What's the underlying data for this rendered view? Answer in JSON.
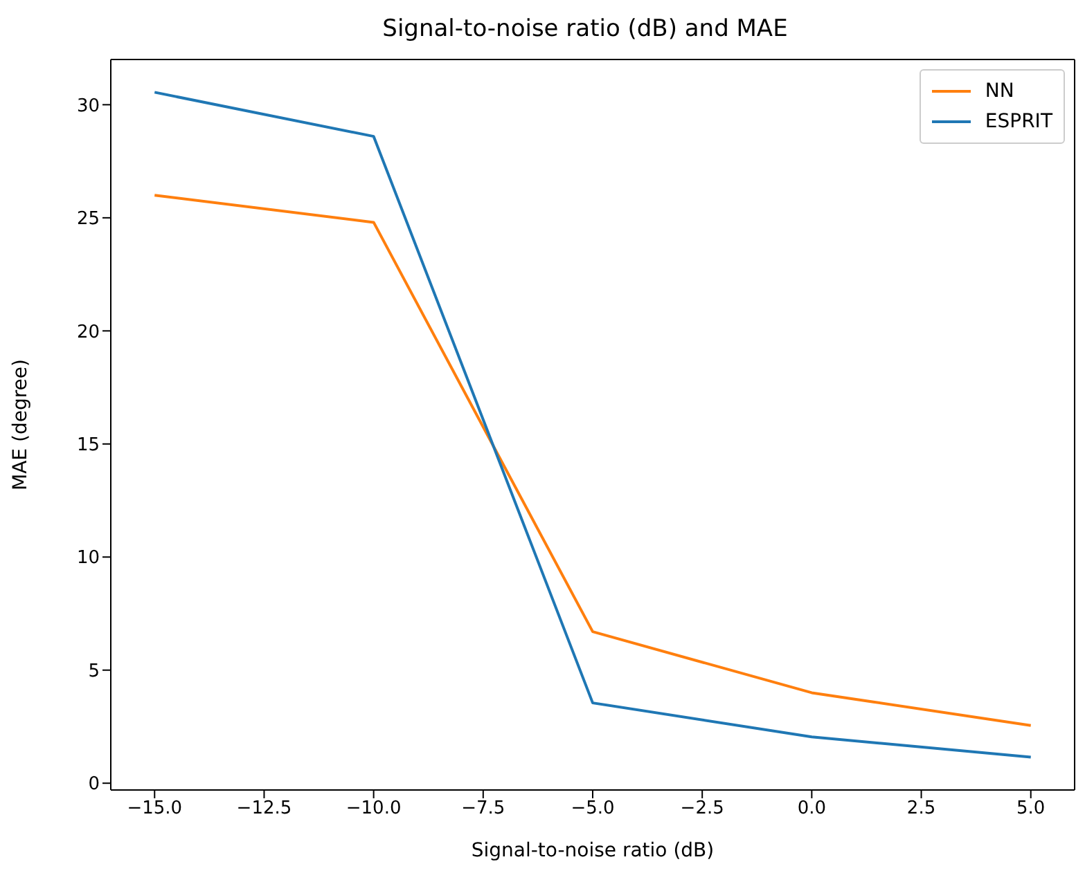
{
  "chart_data": {
    "type": "line",
    "title": "Signal-to-noise ratio (dB) and MAE",
    "xlabel": "Signal-to-noise ratio (dB)",
    "ylabel": "MAE (degree)",
    "x": [
      -15,
      -10,
      -5,
      0,
      5
    ],
    "series": [
      {
        "name": "NN",
        "color": "#ff7f0e",
        "values": [
          26.0,
          24.8,
          6.7,
          4.0,
          2.55
        ]
      },
      {
        "name": "ESPRIT",
        "color": "#1f77b4",
        "values": [
          30.55,
          28.6,
          3.55,
          2.05,
          1.15
        ]
      }
    ],
    "xlim": [
      -16,
      6
    ],
    "xticks": [
      {
        "value": -15,
        "label": "−15.0"
      },
      {
        "value": -12.5,
        "label": "−12.5"
      },
      {
        "value": -10,
        "label": "−10.0"
      },
      {
        "value": -7.5,
        "label": "−7.5"
      },
      {
        "value": -5,
        "label": "−5.0"
      },
      {
        "value": -2.5,
        "label": "−2.5"
      },
      {
        "value": 0,
        "label": "0.0"
      },
      {
        "value": 2.5,
        "label": "2.5"
      },
      {
        "value": 5,
        "label": "5.0"
      }
    ],
    "ylim": [
      -0.3,
      32
    ],
    "yticks": [
      0,
      5,
      10,
      15,
      20,
      25,
      30
    ],
    "grid": false,
    "legend": "top right",
    "marker": "none",
    "line_style": "solid"
  }
}
